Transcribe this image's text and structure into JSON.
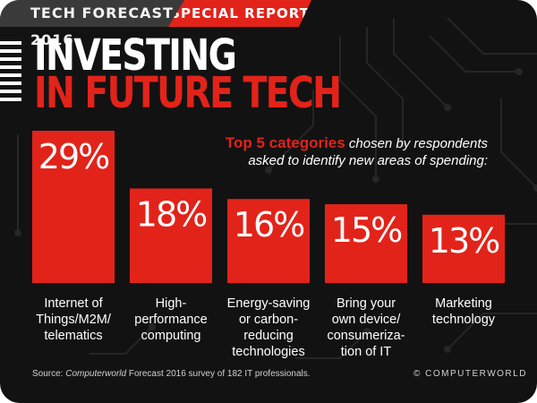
{
  "banner": {
    "series": "TECH FORECAST 2016",
    "report": "SPECIAL REPORT"
  },
  "title": {
    "line1": "INVESTING",
    "line2": "IN FUTURE TECH"
  },
  "subtitle": {
    "highlight": "Top 5 categories",
    "rest": "chosen by respondents",
    "line2": "asked to identify new areas of spending:"
  },
  "source": {
    "prefix": "Source: ",
    "publication": "Computerworld",
    "suffix": " Forecast 2016 survey of 182 IT professionals."
  },
  "credit": "© COMPUTERWORLD",
  "colors": {
    "accent": "#e2231a",
    "background": "#121212",
    "banner": "#3a3a3a"
  },
  "chart_data": {
    "type": "bar",
    "title": "Top 5 categories chosen by respondents asked to identify new areas of spending",
    "categories": [
      [
        "Internet of",
        "Things/M2M/",
        "telematics"
      ],
      [
        "High-",
        "performance",
        "computing"
      ],
      [
        "Energy-saving",
        "or carbon-",
        "reducing",
        "technologies"
      ],
      [
        "Bring your",
        "own device/",
        "consumeriza-",
        "tion of IT"
      ],
      [
        "Marketing",
        "technology"
      ]
    ],
    "values": [
      29,
      18,
      16,
      15,
      13
    ],
    "value_labels": [
      "29%",
      "18%",
      "16%",
      "15%",
      "13%"
    ],
    "unit": "%",
    "ylim": [
      0,
      29
    ]
  }
}
